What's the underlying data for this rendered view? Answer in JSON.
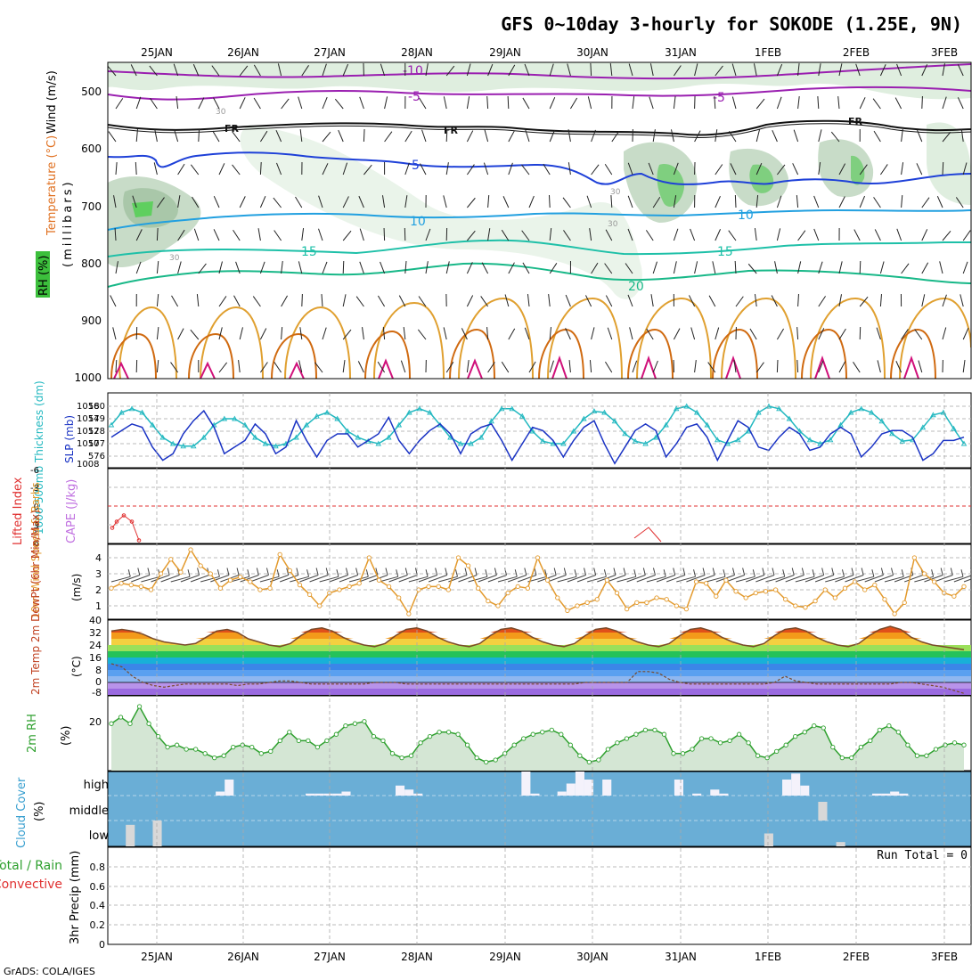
{
  "title": "GFS 0~10day 3-hourly for SOKODE (1.25E, 9N)",
  "credit": "GrADS: COLA/IGES",
  "time_axis": {
    "day_labels": [
      "25JAN",
      "26JAN",
      "27JAN",
      "28JAN",
      "29JAN",
      "30JAN",
      "31JAN",
      "1FEB",
      "2FEB",
      "3FEB"
    ]
  },
  "colors": {
    "rh_fill": "#d4e6d4",
    "temp_cold": "#9a1fb0",
    "temp_mid": "#1e40d8",
    "temp_warm": "#e08a1a",
    "slp": "#1a33c4",
    "thickness": "#22b8c0",
    "wind_speed": "#e39a2d",
    "rh2m": "#2ea02e",
    "cloud_bg": "#6aaed6",
    "lifted_index": "#e03030"
  },
  "panels": {
    "upper_air": {
      "ylabel": "(millibars)",
      "legend_wind": "Wind (m/s)",
      "legend_temp": "Temperature (°C)",
      "legend_rh": "RH (%)",
      "levels": [
        "500",
        "600",
        "700",
        "800",
        "900",
        "1000"
      ],
      "contour_labels": [
        "-10",
        "-5",
        "FR",
        "5",
        "10",
        "15",
        "20",
        "30"
      ]
    },
    "pressure": {
      "ylabel_left": "1000-500mb Thickness (dm)",
      "ylabel_right": "SLP (mb)",
      "left_ticks": [
        "580",
        "579",
        "578",
        "577",
        "576"
      ],
      "right_ticks": [
        "1016",
        "1014",
        "1012",
        "1010",
        "1008"
      ]
    },
    "stability": {
      "ylabel_left": "Lifted Index",
      "ylabel_right": "CAPE (J/kg)",
      "ticks": [
        "-6",
        "-3",
        "0",
        "3",
        "6"
      ]
    },
    "wind10m": {
      "ylabel": "10m Wind Speed & Barbs",
      "unit": "(m/s)",
      "ticks": [
        "4",
        "3",
        "2",
        "1"
      ]
    },
    "temp2m": {
      "ylabel": "2m Temp 2m DewPt (6hr Min/Max)",
      "unit": "(°C)",
      "ticks": [
        "40",
        "32",
        "24",
        "16",
        "8",
        "0",
        "-8"
      ]
    },
    "rh2m": {
      "ylabel": "2m RH",
      "unit": "(%)",
      "ticks": [
        "20"
      ]
    },
    "cloud": {
      "ylabel": "Cloud Cover",
      "unit": "(%)",
      "levels": [
        "high",
        "middle",
        "low"
      ]
    },
    "precip": {
      "ylabel": "3hr Precip (mm)",
      "legend_total": "Total / Rain",
      "legend_convective": "Convective",
      "ticks": [
        "0.8",
        "0.6",
        "0.4",
        "0.2",
        "0"
      ],
      "run_total": "Run Total = 0"
    }
  },
  "chart_data": [
    {
      "type": "line",
      "title": "1000-500mb Thickness / SLP",
      "series": [
        {
          "name": "SLP (mb)",
          "values": [
            1012.5,
            1013.5,
            1014.5,
            1014,
            1011,
            1009,
            1010,
            1013,
            1015,
            1016.5,
            1014,
            1010,
            1011,
            1012,
            1014.5,
            1013,
            1010,
            1011,
            1015,
            1012,
            1009.5,
            1012,
            1013,
            1013,
            1011,
            1012,
            1013,
            1015.5,
            1012,
            1010,
            1012,
            1013.5,
            1014.5,
            1013,
            1010,
            1013,
            1014,
            1014.5,
            1012,
            1009,
            1011.5,
            1014,
            1013.5,
            1012,
            1009.5,
            1012,
            1014,
            1015,
            1011.5,
            1008.5,
            1011,
            1013.5,
            1014.5,
            1013.5,
            1009.5,
            1011.5,
            1014,
            1014.5,
            1012.5,
            1009,
            1012,
            1015,
            1014,
            1011,
            1010.5,
            1012.5,
            1014,
            1013,
            1010.5,
            1011,
            1013,
            1014,
            1013,
            1009.5,
            1011,
            1013,
            1013.5,
            1013.5,
            1012.5,
            1009,
            1010,
            1012,
            1012,
            1012.5
          ]
        },
        {
          "name": "1000-500mb Thickness (dm)",
          "values": [
            578.5,
            579.5,
            579.8,
            579.5,
            578.5,
            577.5,
            577,
            576.8,
            576.8,
            577.5,
            578.5,
            579,
            579,
            578.5,
            577.5,
            577,
            576.8,
            577,
            577.5,
            578.5,
            579.2,
            579.5,
            579,
            578,
            577.5,
            577.2,
            577,
            577.5,
            578.5,
            579.5,
            579.8,
            579.5,
            578.5,
            577.5,
            577,
            577,
            577.5,
            578.8,
            579.8,
            579.8,
            579.2,
            578,
            577.2,
            577,
            577,
            578,
            579,
            579.6,
            579.5,
            578.8,
            577.8,
            577.2,
            577,
            577.5,
            578.5,
            579.8,
            580,
            579.5,
            578.5,
            577.3,
            577,
            577.3,
            578,
            579.5,
            580,
            579.8,
            579,
            578,
            577.3,
            577,
            577.3,
            578.5,
            579.5,
            579.8,
            579.5,
            578.8,
            577.8,
            577.2,
            577.3,
            578.3,
            579.3,
            579.5,
            578.2,
            577
          ]
        }
      ]
    },
    {
      "type": "line",
      "title": "Lifted Index",
      "series": [
        {
          "name": "Lifted Index",
          "values": [
            3.5,
            2.5,
            1.5,
            2.5,
            5.5
          ]
        }
      ]
    },
    {
      "type": "line",
      "title": "10m Wind Speed",
      "ylim": [
        0,
        5
      ],
      "series": [
        {
          "name": "10m Wind Speed (m/s)",
          "values": [
            2.1,
            2.4,
            2.3,
            2.2,
            2,
            3,
            3.9,
            3.1,
            4.5,
            3.5,
            3,
            2.1,
            2.6,
            2.8,
            2.5,
            2,
            2.1,
            4.2,
            3.2,
            2.3,
            1.7,
            1,
            1.8,
            2,
            2.2,
            2.4,
            4,
            2.6,
            2.2,
            1.5,
            0.5,
            2,
            2.2,
            2.2,
            2,
            4,
            3.5,
            2.1,
            1.3,
            1,
            1.8,
            2.2,
            2.1,
            4,
            2.6,
            1.5,
            0.7,
            1,
            1.2,
            1.4,
            2.6,
            1.8,
            0.8,
            1.2,
            1.2,
            1.5,
            1.4,
            1,
            0.8,
            2.5,
            2.4,
            1.6,
            2.6,
            1.9,
            1.5,
            1.8,
            1.9,
            2,
            1.4,
            1,
            0.9,
            1.3,
            2,
            1.5,
            2.1,
            2.5,
            2,
            2.3,
            1.4,
            0.5,
            1.2,
            4,
            3,
            2.5,
            1.8,
            1.6,
            2.2
          ]
        }
      ]
    },
    {
      "type": "area",
      "title": "2m Temp / DewPt",
      "ylim": [
        -8,
        40
      ],
      "series": [
        {
          "name": "2m Temp (°C)",
          "values": [
            33,
            34,
            33,
            31,
            28,
            26,
            25,
            24,
            25,
            29,
            33,
            34,
            32,
            28,
            26,
            24,
            23,
            25,
            30,
            34,
            35,
            33,
            29,
            26,
            24,
            23,
            25,
            30,
            34,
            35,
            33,
            29,
            26,
            24,
            23,
            25,
            30,
            34,
            35,
            33,
            29,
            26,
            24,
            23,
            25,
            30,
            34,
            35,
            33,
            29,
            26,
            24,
            23,
            25,
            30,
            34,
            35,
            33,
            29,
            26,
            24,
            23,
            25,
            30,
            34,
            35,
            33,
            29,
            26,
            24,
            23,
            25,
            30,
            34,
            36,
            34,
            29,
            26,
            24,
            23,
            22,
            21
          ]
        },
        {
          "name": "2m DewPt (°C)",
          "values": [
            12,
            10,
            4,
            0,
            -2,
            -3,
            -2,
            -1,
            -1,
            -1,
            -1,
            -1,
            -2,
            -1,
            -1,
            0,
            1,
            1,
            0,
            -1,
            -1,
            -1,
            -1,
            -1,
            -1,
            0,
            0,
            0,
            -1,
            -1,
            -1,
            -1,
            -1,
            -1,
            -1,
            -1,
            -1,
            -1,
            -1,
            -1,
            -1,
            -1,
            -1,
            -1,
            -1,
            0,
            0,
            0,
            0,
            0,
            7,
            7,
            6,
            2,
            0,
            -1,
            -1,
            -1,
            -1,
            -1,
            -1,
            -1,
            -1,
            0,
            4,
            1,
            0,
            -1,
            -1,
            -1,
            -1,
            -1,
            -1,
            -1,
            -1,
            0,
            0,
            -1,
            -2,
            -3,
            -5,
            -7
          ]
        }
      ]
    },
    {
      "type": "area",
      "title": "2m RH",
      "series": [
        {
          "name": "2m RH (%)",
          "values": [
            22,
            25,
            22,
            30,
            22,
            16,
            11,
            12,
            10,
            10,
            8,
            6,
            7,
            11,
            12,
            11,
            8,
            9,
            14,
            18,
            14,
            14,
            11,
            14,
            17,
            21,
            22,
            23,
            16,
            14,
            8,
            6,
            7,
            13,
            16,
            18,
            18,
            17,
            12,
            6,
            4,
            5,
            8,
            12,
            15,
            17,
            18,
            19,
            17,
            12,
            7,
            4,
            5,
            10,
            13,
            15,
            17,
            19,
            19,
            17,
            8,
            8,
            10,
            15,
            15,
            13,
            14,
            17,
            13,
            7,
            6,
            9,
            12,
            16,
            18,
            21,
            20,
            11,
            6,
            6,
            11,
            14,
            19,
            21,
            18,
            12,
            7,
            7,
            10,
            12,
            13,
            12
          ]
        }
      ]
    },
    {
      "type": "bar",
      "title": "Cloud Cover",
      "series": [
        {
          "name": "high",
          "values": [
            0,
            0,
            0,
            0,
            0,
            0,
            0,
            0,
            0,
            0,
            0,
            0,
            10,
            40,
            0,
            0,
            0,
            0,
            0,
            0,
            0,
            0,
            5,
            5,
            5,
            5,
            10,
            0,
            0,
            0,
            0,
            0,
            25,
            15,
            5,
            0,
            0,
            0,
            0,
            0,
            0,
            0,
            0,
            0,
            0,
            0,
            60,
            5,
            0,
            0,
            10,
            30,
            60,
            40,
            0,
            40,
            0,
            0,
            0,
            0,
            0,
            0,
            0,
            40,
            0,
            5,
            0,
            15,
            5,
            0,
            0,
            0,
            0,
            0,
            0,
            40,
            55,
            25,
            0,
            0,
            0,
            0,
            0,
            0,
            0,
            5,
            5,
            10,
            5,
            0,
            0,
            0,
            0,
            0,
            0,
            0
          ]
        },
        {
          "name": "middle",
          "values": [
            0,
            0,
            0,
            0,
            0,
            0,
            0,
            0,
            0,
            0,
            0,
            0,
            0,
            0,
            0,
            0,
            0,
            0,
            0,
            0,
            0,
            0,
            0,
            0,
            0,
            0,
            0,
            0,
            0,
            0,
            0,
            0,
            0,
            0,
            0,
            0,
            0,
            0,
            0,
            0,
            0,
            0,
            0,
            0,
            0,
            0,
            0,
            0,
            0,
            0,
            0,
            0,
            0,
            0,
            0,
            0,
            0,
            0,
            0,
            0,
            0,
            0,
            0,
            0,
            0,
            0,
            0,
            0,
            0,
            0,
            0,
            0,
            0,
            0,
            0,
            0,
            0,
            0,
            0,
            45,
            0,
            0,
            0,
            0,
            0,
            0,
            0,
            0,
            0,
            0,
            0,
            0,
            0,
            0,
            0,
            0
          ]
        },
        {
          "name": "low",
          "values": [
            0,
            0,
            50,
            0,
            0,
            60,
            0,
            0,
            0,
            0,
            0,
            0,
            0,
            0,
            0,
            0,
            0,
            0,
            0,
            0,
            0,
            0,
            0,
            0,
            0,
            0,
            0,
            0,
            0,
            0,
            0,
            0,
            0,
            0,
            0,
            0,
            0,
            0,
            0,
            0,
            0,
            0,
            0,
            0,
            0,
            0,
            0,
            0,
            0,
            0,
            0,
            0,
            0,
            0,
            0,
            0,
            0,
            0,
            0,
            0,
            0,
            0,
            0,
            0,
            0,
            0,
            0,
            0,
            0,
            0,
            0,
            0,
            0,
            30,
            0,
            0,
            0,
            0,
            0,
            0,
            0,
            10,
            0,
            0,
            0,
            0,
            0,
            0,
            0,
            0,
            0,
            0,
            0,
            0,
            0,
            0
          ]
        }
      ]
    },
    {
      "type": "bar",
      "title": "3hr Precip",
      "ylim": [
        0,
        1
      ],
      "series": [
        {
          "name": "Total / Rain",
          "values": [
            0,
            0,
            0,
            0,
            0,
            0,
            0,
            0,
            0,
            0
          ]
        }
      ]
    }
  ]
}
